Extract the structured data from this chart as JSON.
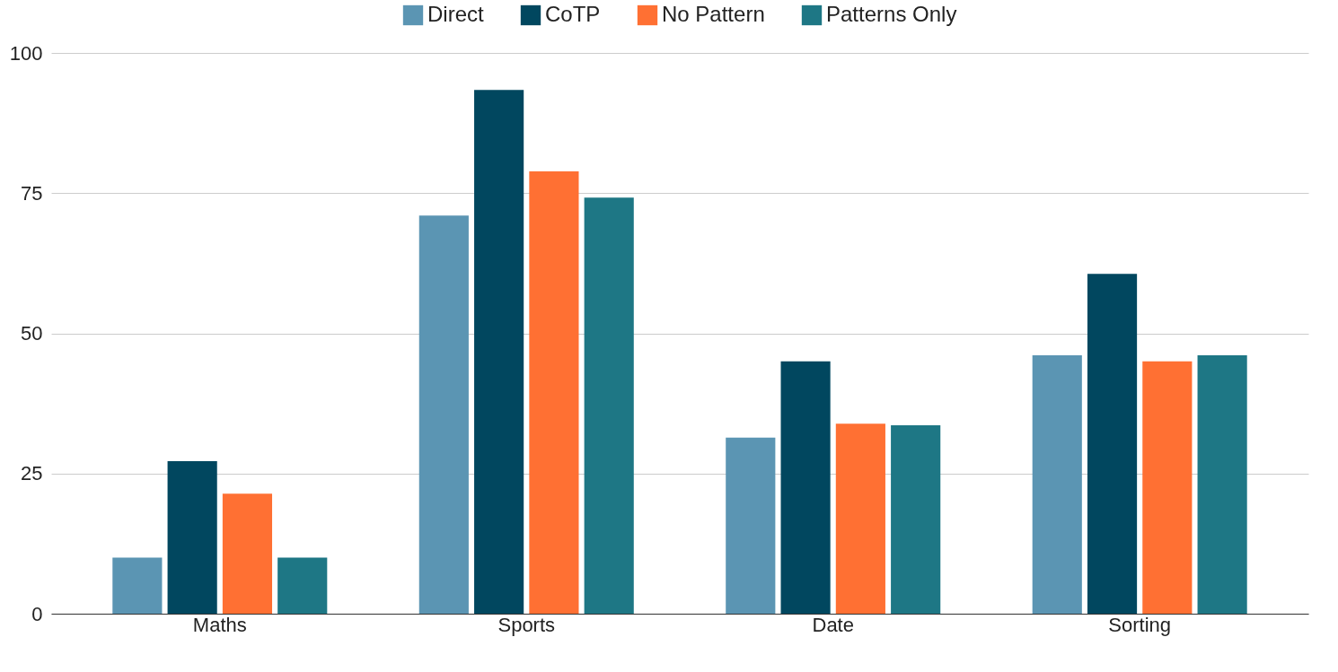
{
  "chart_data": {
    "type": "bar",
    "categories": [
      "Maths",
      "Sports",
      "Date",
      "Sorting"
    ],
    "series": [
      {
        "name": "Direct",
        "color": "#5b95b3",
        "values": [
          10,
          71,
          31.4,
          46.1
        ]
      },
      {
        "name": "CoTP",
        "color": "#01475f",
        "values": [
          27.2,
          93.4,
          45,
          60.6
        ]
      },
      {
        "name": "No Pattern",
        "color": "#ff7033",
        "values": [
          21.4,
          78.9,
          33.9,
          45
        ]
      },
      {
        "name": "Patterns Only",
        "color": "#1e7785",
        "values": [
          10,
          74.2,
          33.6,
          46.1
        ]
      }
    ],
    "ylim": [
      0,
      100
    ],
    "yticks": [
      0,
      25,
      50,
      75,
      100
    ],
    "grid": "y",
    "legend": "top"
  }
}
